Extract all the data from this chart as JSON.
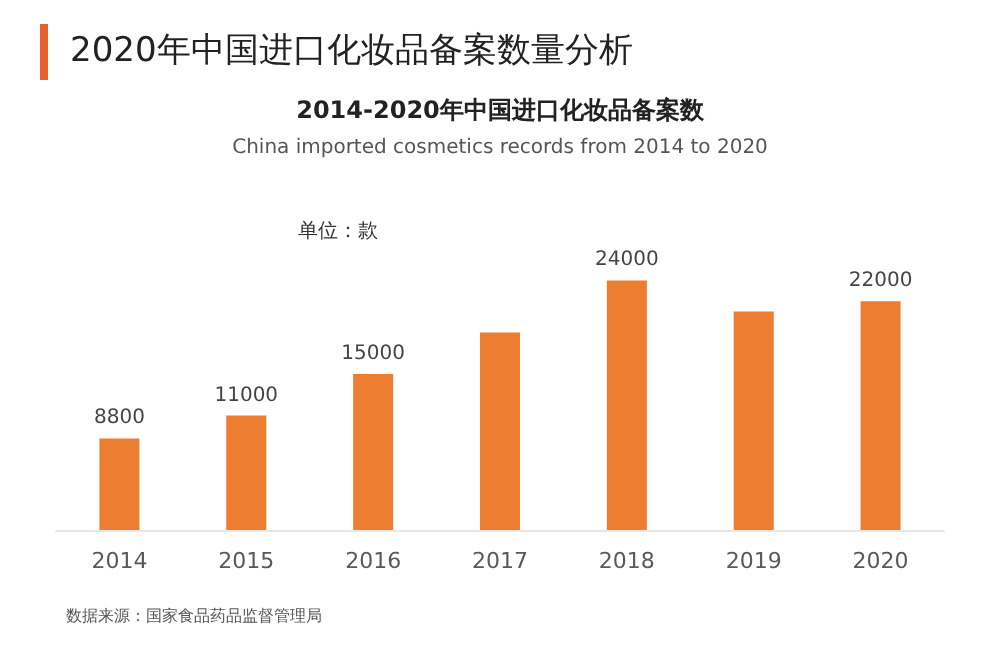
{
  "chart_data": {
    "type": "bar",
    "title": "2020年中国进口化妆品备案数量分析",
    "subtitle": "2014-2020年中国进口化妆品备案数",
    "annotations": [
      "China imported cosmetics records from 2014 to 2020",
      "单位：款",
      "数据来源：国家食品药品监督管理局"
    ],
    "categories": [
      "2014",
      "2015",
      "2016",
      "2017",
      "2018",
      "2019",
      "2020"
    ],
    "values": [
      8800,
      11000,
      15000,
      19000,
      24000,
      21000,
      22000
    ],
    "value_labels": [
      "8800",
      "11000",
      "15000",
      null,
      "24000",
      null,
      "22000"
    ],
    "color": "#ed7d31"
  }
}
